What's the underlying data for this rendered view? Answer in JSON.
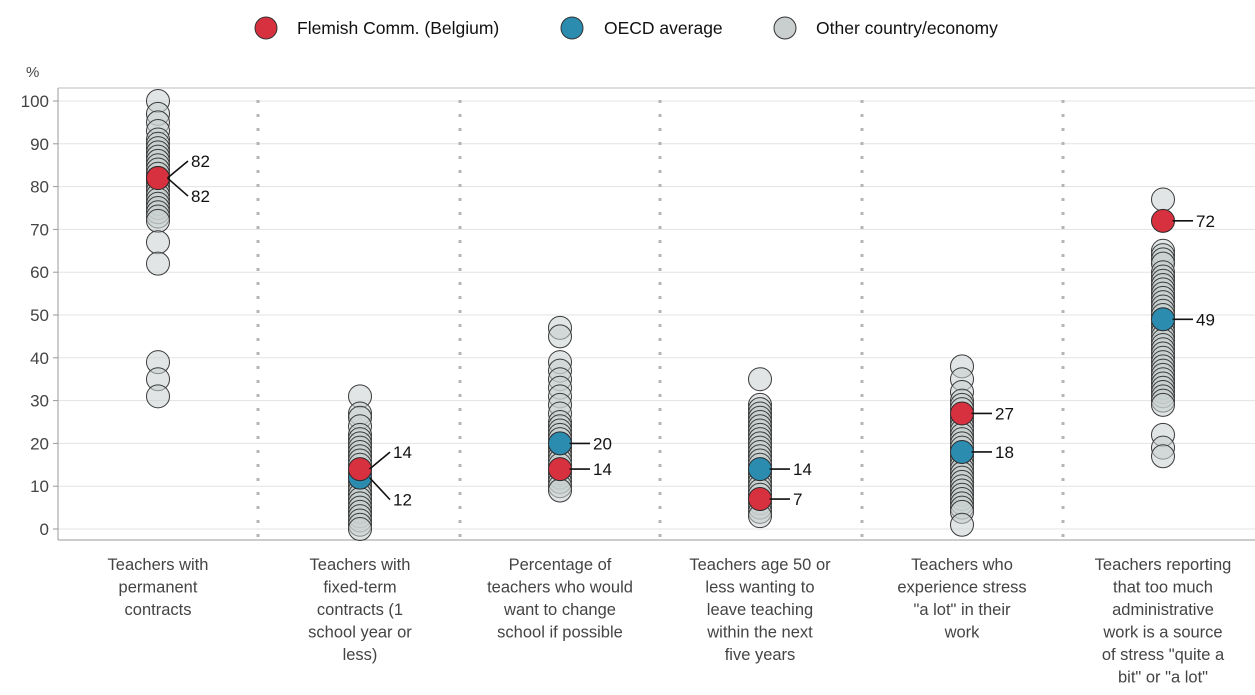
{
  "chart_data": {
    "type": "scatter",
    "ylabel": "%",
    "ylim": [
      0,
      100
    ],
    "yticks": [
      0,
      10,
      20,
      30,
      40,
      50,
      60,
      70,
      80,
      90,
      100
    ],
    "grid": "horizontal",
    "legend": {
      "placement": "top",
      "items": [
        {
          "label": "Flemish Comm. (Belgium)",
          "color": "#d7303f"
        },
        {
          "label": "OECD average",
          "color": "#2b8cb0"
        },
        {
          "label": "Other country/economy",
          "color": "#c9cfcf"
        }
      ]
    },
    "categories": [
      {
        "label_lines": [
          "Teachers with",
          "permanent",
          "contracts"
        ],
        "flemish": 82,
        "oecd": 82,
        "flemish_label": "82",
        "oecd_label": "82",
        "others": [
          100,
          97,
          95,
          93,
          91,
          90,
          89,
          88,
          87,
          86,
          85,
          84,
          83,
          82,
          81,
          80,
          79,
          78,
          77,
          76,
          75,
          74,
          73,
          72,
          67,
          62,
          39,
          35,
          31
        ]
      },
      {
        "label_lines": [
          "Teachers with",
          "fixed-term",
          "contracts (1",
          "school year or",
          "less)"
        ],
        "flemish": 14,
        "oecd": 12,
        "flemish_label": "14",
        "oecd_label": "12",
        "others": [
          31,
          27,
          26,
          24,
          22,
          21,
          20,
          19,
          18,
          17,
          16,
          15,
          13,
          11,
          10,
          9,
          8,
          7,
          6,
          5,
          4,
          3,
          2,
          1,
          0
        ]
      },
      {
        "label_lines": [
          "Percentage of",
          "teachers who would",
          "want to change",
          "school if possible"
        ],
        "flemish": 14,
        "oecd": 20,
        "flemish_label": "14",
        "oecd_label": "20",
        "others": [
          47,
          45,
          39,
          37,
          35,
          33,
          31,
          29,
          27,
          25,
          24,
          23,
          22,
          21,
          19,
          18,
          17,
          16,
          15,
          13,
          12,
          11,
          10,
          9
        ]
      },
      {
        "label_lines": [
          "Teachers age 50 or",
          "less wanting to",
          "leave teaching",
          "within the next",
          "five years"
        ],
        "flemish": 7,
        "oecd": 14,
        "flemish_label": "7",
        "oecd_label": "14",
        "others": [
          35,
          29,
          28,
          27,
          26,
          25,
          24,
          23,
          22,
          21,
          20,
          19,
          18,
          17,
          16,
          15,
          13,
          12,
          11,
          10,
          9,
          8,
          6,
          5,
          4,
          3
        ]
      },
      {
        "label_lines": [
          "Teachers who",
          "experience stress",
          "\"a lot\" in their",
          "work"
        ],
        "flemish": 27,
        "oecd": 18,
        "flemish_label": "27",
        "oecd_label": "18",
        "others": [
          38,
          35,
          32,
          30,
          29,
          28,
          26,
          25,
          24,
          23,
          22,
          21,
          20,
          19,
          17,
          16,
          15,
          14,
          13,
          12,
          11,
          10,
          9,
          8,
          7,
          6,
          5,
          4,
          1
        ]
      },
      {
        "label_lines": [
          "Teachers reporting",
          "that too much",
          "administrative",
          "work is a source",
          "of stress \"quite a",
          "bit\" or \"a lot\""
        ],
        "flemish": 72,
        "oecd": 49,
        "flemish_label": "72",
        "oecd_label": "49",
        "others": [
          77,
          65,
          64,
          63,
          62,
          60,
          59,
          58,
          57,
          56,
          55,
          54,
          53,
          52,
          51,
          50,
          48,
          47,
          46,
          45,
          44,
          43,
          42,
          41,
          40,
          39,
          38,
          37,
          36,
          35,
          34,
          33,
          32,
          31,
          30,
          29,
          22,
          19,
          17
        ]
      }
    ]
  }
}
